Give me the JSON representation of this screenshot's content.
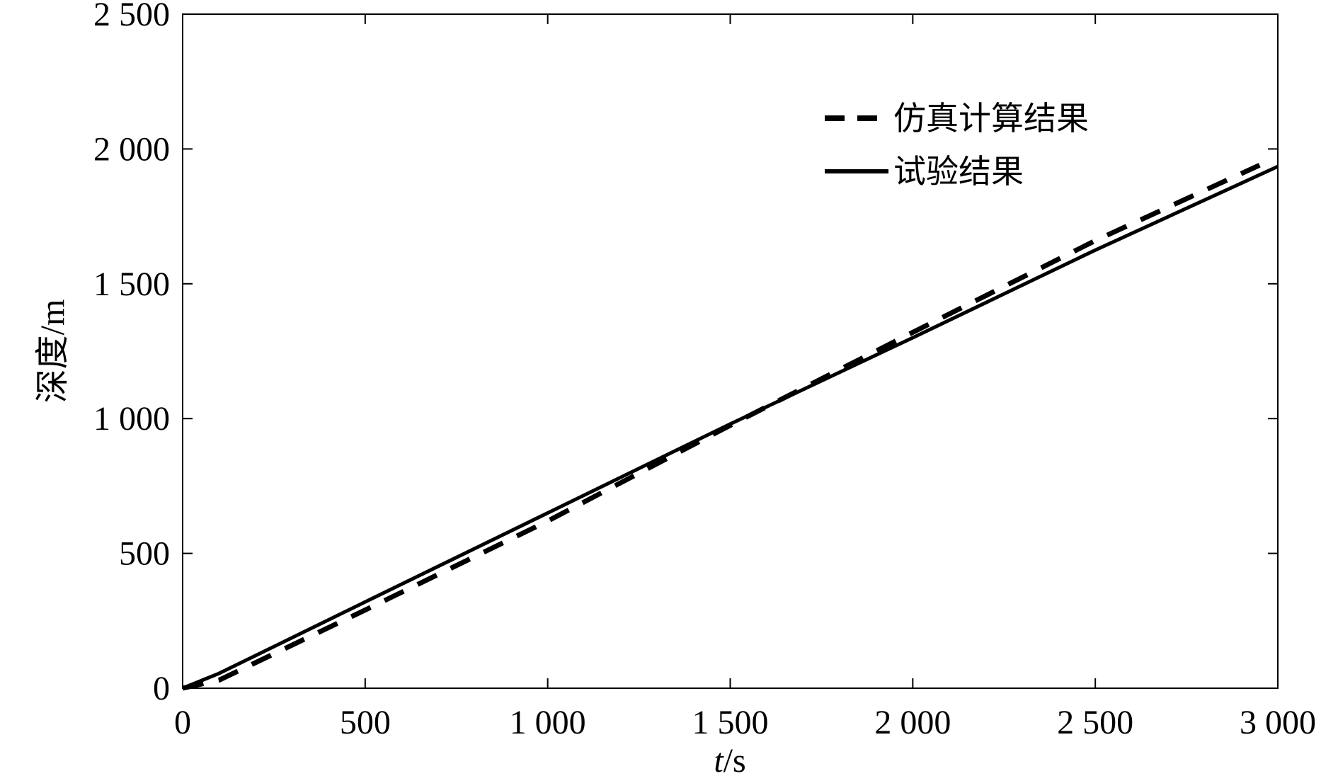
{
  "chart_data": {
    "type": "line",
    "title": "",
    "xlabel_italic": "t",
    "xlabel_rest": "/s",
    "ylabel": "深度/m",
    "xlim": [
      0,
      3000
    ],
    "ylim": [
      0,
      2500
    ],
    "x_ticks": [
      0,
      500,
      1000,
      1500,
      2000,
      2500,
      3000
    ],
    "x_tick_labels": [
      "0",
      "500",
      "1 000",
      "1 500",
      "2 000",
      "2 500",
      "3 000"
    ],
    "y_ticks": [
      0,
      500,
      1000,
      1500,
      2000,
      2500
    ],
    "y_tick_labels": [
      "0",
      "500",
      "1 000",
      "1 500",
      "2 000",
      "2 500"
    ],
    "grid": false,
    "legend_position": "top-right",
    "series": [
      {
        "name": "仿真计算结果",
        "style": "dashed",
        "x": [
          0,
          100,
          500,
          1000,
          1500,
          2000,
          2500,
          2950
        ],
        "values": [
          0,
          30,
          290,
          620,
          975,
          1320,
          1660,
          1940
        ]
      },
      {
        "name": "试验结果",
        "style": "solid",
        "x": [
          0,
          100,
          500,
          1000,
          1500,
          2000,
          2500,
          3000
        ],
        "values": [
          0,
          55,
          320,
          650,
          980,
          1300,
          1625,
          1935
        ]
      }
    ]
  }
}
